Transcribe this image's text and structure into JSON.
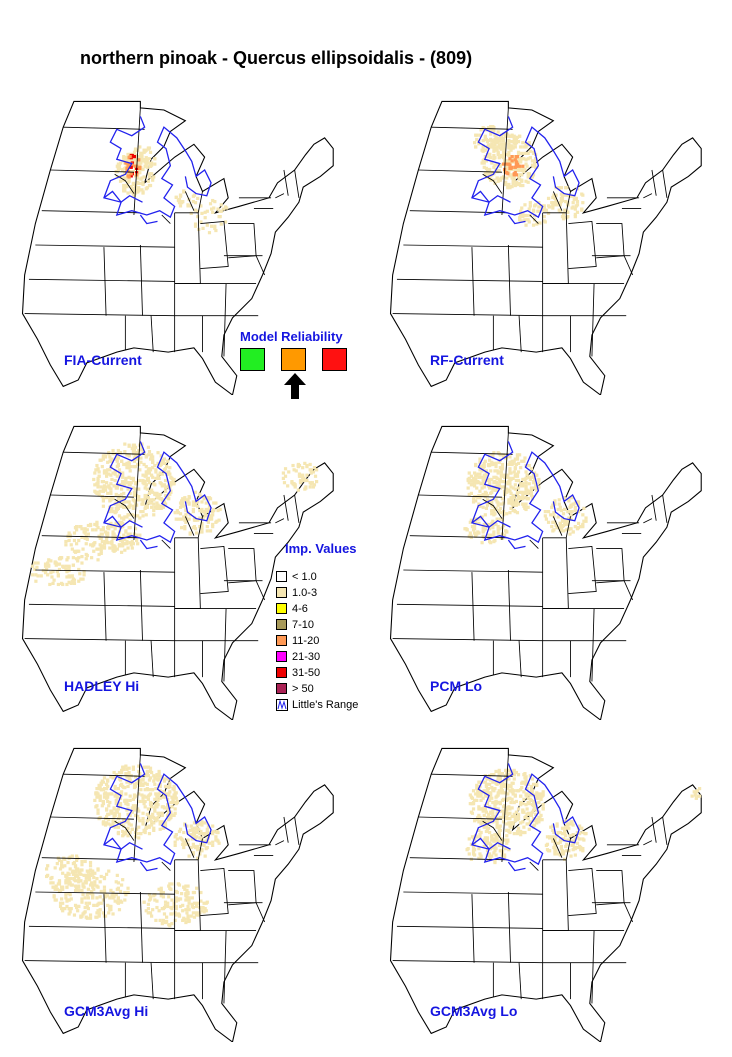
{
  "title": "northern pinoak - Quercus ellipsoidalis - (809)",
  "maps": [
    {
      "label": "FIA-Current",
      "intensity": "fia"
    },
    {
      "label": "RF-Current",
      "intensity": "rf"
    },
    {
      "label": "HADLEY Hi",
      "intensity": "hadley"
    },
    {
      "label": "PCM Lo",
      "intensity": "pcm"
    },
    {
      "label": "GCM3Avg Hi",
      "intensity": "gcmhi"
    },
    {
      "label": "GCM3Avg Lo",
      "intensity": "gcmlo"
    }
  ],
  "model_reliability": {
    "title": "Model Reliability",
    "levels": [
      {
        "color": "#22ee22",
        "selected": false
      },
      {
        "color": "#ff9900",
        "selected": true
      },
      {
        "color": "#ff1111",
        "selected": false
      }
    ]
  },
  "legend": {
    "title": "Imp. Values",
    "items": [
      {
        "label": "< 1.0",
        "color": "#ffffff"
      },
      {
        "label": "1.0-3",
        "color": "#f5e6b2"
      },
      {
        "label": "4-6",
        "color": "#ffff00"
      },
      {
        "label": "7-10",
        "color": "#a89a5a"
      },
      {
        "label": "11-20",
        "color": "#ff9955"
      },
      {
        "label": "21-30",
        "color": "#ff00ff"
      },
      {
        "label": "31-50",
        "color": "#ee0000"
      },
      {
        "label": "> 50",
        "color": "#aa2255"
      }
    ],
    "range_label": "Little's Range"
  },
  "colors": {
    "label_blue": "#1515e0",
    "range_line": "#2222ee",
    "impval_low": "#f5e6b2",
    "impval_mid": "#ff9955",
    "impval_high": "#ee0000"
  }
}
